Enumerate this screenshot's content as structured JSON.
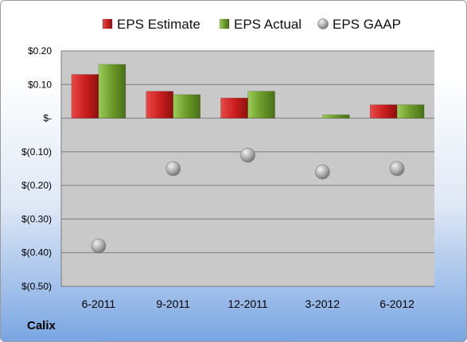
{
  "company": "Calix",
  "colors": {
    "estimate": "#cc1f1f",
    "actual": "#6c9a2a",
    "gaap": "#a7a7a7",
    "plot_bg": "#c9c9c9"
  },
  "chart_data": {
    "type": "bar",
    "categories": [
      "6-2011",
      "9-2011",
      "12-2011",
      "3-2012",
      "6-2012"
    ],
    "series": [
      {
        "name": "EPS Estimate",
        "kind": "bar",
        "values": [
          0.13,
          0.08,
          0.06,
          0.0,
          0.04
        ]
      },
      {
        "name": "EPS Actual",
        "kind": "bar",
        "values": [
          0.16,
          0.07,
          0.08,
          0.01,
          0.04
        ]
      },
      {
        "name": "EPS GAAP",
        "kind": "scatter",
        "values": [
          -0.38,
          -0.15,
          -0.11,
          -0.16,
          -0.15
        ]
      }
    ],
    "ylim": [
      -0.5,
      0.2
    ],
    "yticks": [
      0.2,
      0.1,
      0.0,
      -0.1,
      -0.2,
      -0.3,
      -0.4,
      -0.5
    ],
    "ytick_labels": [
      "$0.20",
      "$0.10",
      "$-",
      "$(0.10)",
      "$(0.20)",
      "$(0.30)",
      "$(0.40)",
      "$(0.50)"
    ],
    "grid": true,
    "legend": "top-center"
  }
}
